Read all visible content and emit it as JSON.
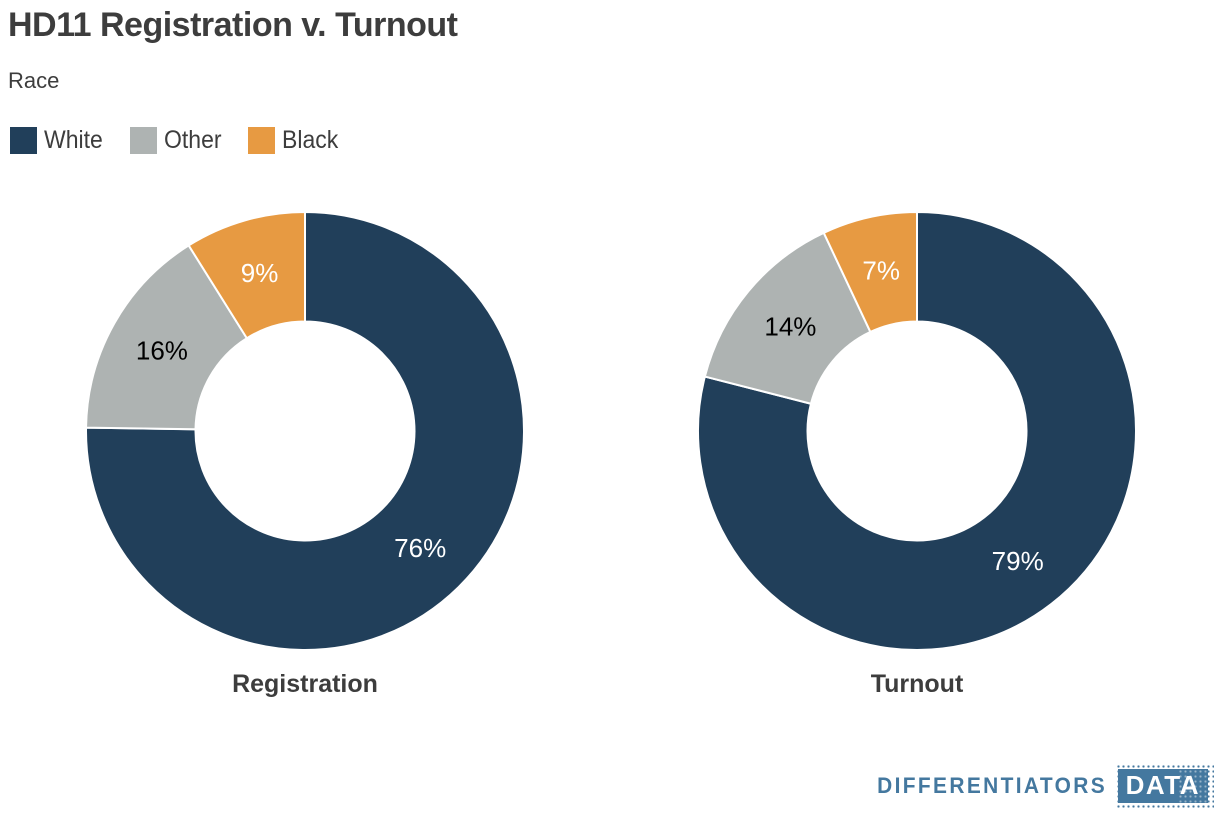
{
  "header": {
    "title": "HD11 Registration v. Turnout",
    "subtitle": "Race"
  },
  "legend": {
    "position": "top-left",
    "items": [
      {
        "label": "White",
        "color": "#213F5A"
      },
      {
        "label": "Other",
        "color": "#AEB3B2"
      },
      {
        "label": "Black",
        "color": "#E79A42"
      }
    ]
  },
  "chart_data": [
    {
      "type": "pie",
      "subtype": "donut",
      "title": "Registration",
      "start_angle": 0,
      "inner_radius_ratio": 0.5,
      "series": [
        {
          "name": "White",
          "value": 76,
          "label": "76%",
          "color": "#213F5A",
          "label_color": "#ffffff"
        },
        {
          "name": "Other",
          "value": 16,
          "label": "16%",
          "color": "#AEB3B2",
          "label_color": "#000000"
        },
        {
          "name": "Black",
          "value": 9,
          "label": "9%",
          "color": "#E79A42",
          "label_color": "#ffffff"
        }
      ]
    },
    {
      "type": "pie",
      "subtype": "donut",
      "title": "Turnout",
      "start_angle": 0,
      "inner_radius_ratio": 0.5,
      "series": [
        {
          "name": "White",
          "value": 79,
          "label": "79%",
          "color": "#213F5A",
          "label_color": "#ffffff"
        },
        {
          "name": "Other",
          "value": 14,
          "label": "14%",
          "color": "#AEB3B2",
          "label_color": "#000000"
        },
        {
          "name": "Black",
          "value": 7,
          "label": "7%",
          "color": "#E79A42",
          "label_color": "#ffffff"
        }
      ]
    }
  ],
  "footer": {
    "brand": "DIFFERENTIATORS",
    "brand_badge": "DATA",
    "brand_color": "#44789F"
  }
}
